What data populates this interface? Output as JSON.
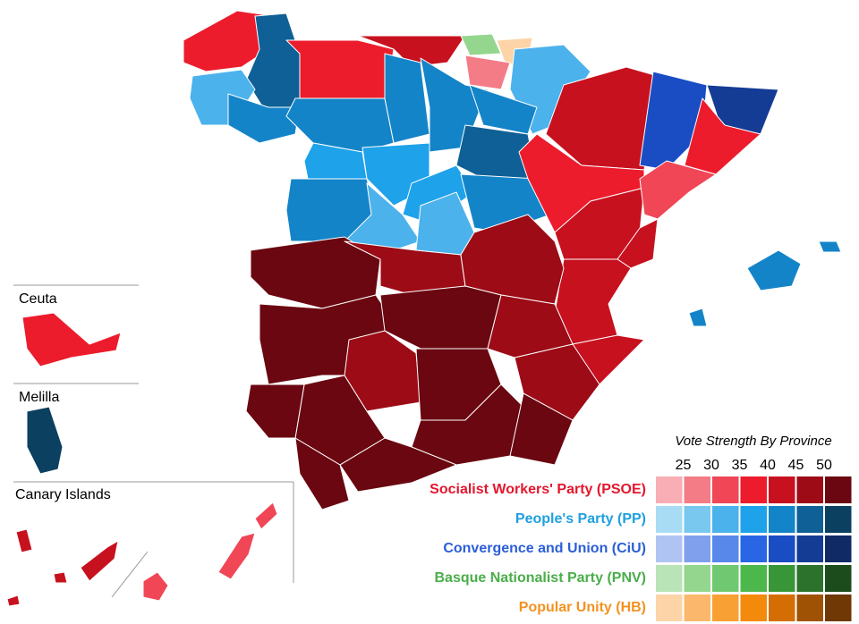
{
  "insets": [
    {
      "label": "Ceuta"
    },
    {
      "label": "Melilla"
    },
    {
      "label": "Canary Islands"
    }
  ],
  "legend": {
    "title": "Vote Strength By Province",
    "ticks": [
      25,
      30,
      35,
      40,
      45,
      50
    ],
    "parties": [
      {
        "name": "Socialist Workers' Party (PSOE)",
        "color": "#e3172e",
        "shades": [
          "#f8aeb4",
          "#f47c86",
          "#f04656",
          "#ec1c2c",
          "#c8111f",
          "#9c0b16",
          "#6a0710"
        ]
      },
      {
        "name": "People's Party (PP)",
        "color": "#1fa0e0",
        "shades": [
          "#a8dcf4",
          "#79c8f0",
          "#4cb2ec",
          "#1ea2ea",
          "#1484c8",
          "#0f6096",
          "#0c4060"
        ]
      },
      {
        "name": "Convergence and Union (CiU)",
        "color": "#2b5ed8",
        "shades": [
          "#b0c4f4",
          "#80a0ee",
          "#5888ea",
          "#2866e6",
          "#1a4cc4",
          "#153c94",
          "#102a66"
        ]
      },
      {
        "name": "Basque Nationalist Party (PNV)",
        "color": "#4aae4a",
        "shades": [
          "#b8e4b8",
          "#94d68e",
          "#70c870",
          "#4cb84c",
          "#389638",
          "#2c722c",
          "#1c4c1c"
        ]
      },
      {
        "name": "Popular Unity (HB)",
        "color": "#f39221",
        "shades": [
          "#fcd4a8",
          "#fbb86c",
          "#f8a034",
          "#f48a0c",
          "#d46e04",
          "#a05204",
          "#703804"
        ]
      }
    ]
  }
}
